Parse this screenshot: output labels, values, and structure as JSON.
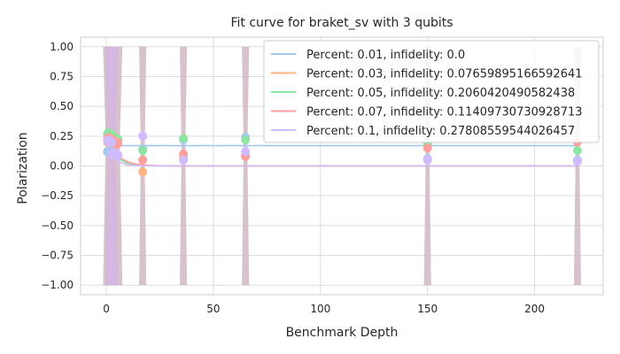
{
  "chart_data": {
    "type": "scatter",
    "title": "Fit curve for braket_sv with 3 qubits",
    "xlabel": "Benchmark Depth",
    "ylabel": "Polarization",
    "xlim": [
      -12,
      232
    ],
    "ylim": [
      -1.08,
      1.08
    ],
    "xticks": [
      0,
      50,
      100,
      150,
      200
    ],
    "yticks": [
      -1.0,
      -0.75,
      -0.5,
      -0.25,
      0.0,
      0.25,
      0.5,
      0.75,
      1.0
    ],
    "xtick_labels": [
      "0",
      "50",
      "100",
      "150",
      "200"
    ],
    "ytick_labels": [
      "−1.00",
      "−0.75",
      "−0.50",
      "−0.25",
      "0.00",
      "0.25",
      "0.50",
      "0.75",
      "1.00"
    ],
    "grid": true,
    "legend_position": "top-right",
    "depths": [
      1,
      2,
      3,
      5,
      17,
      36,
      65,
      150,
      220
    ],
    "series": [
      {
        "name": "Percent: 0.01, infidelity: 0.0",
        "color": "#a1c9f4",
        "values": [
          0.12,
          0.2,
          0.23,
          0.22,
          0.14,
          0.22,
          0.24,
          0.06,
          0.05
        ],
        "fit": {
          "a": 0.0,
          "b": 0.17,
          "decay": 0.0
        }
      },
      {
        "name": "Percent: 0.03, infidelity: 0.07659895166592641",
        "color": "#ffb482",
        "values": [
          0.2,
          0.22,
          0.24,
          0.21,
          -0.05,
          0.07,
          0.09,
          0.05,
          0.04
        ],
        "fit": {
          "a": 0.26,
          "b": 0.0,
          "decay": 0.2
        }
      },
      {
        "name": "Percent: 0.05, infidelity: 0.2060420490582438",
        "color": "#8de5a1",
        "values": [
          0.27,
          0.26,
          0.23,
          0.22,
          0.13,
          0.23,
          0.22,
          0.18,
          0.13
        ],
        "fit": {
          "a": 0.28,
          "b": 0.0,
          "decay": 0.25
        }
      },
      {
        "name": "Percent: 0.07, infidelity: 0.11409730730928713",
        "color": "#ff9f9b",
        "values": [
          0.23,
          0.22,
          0.21,
          0.19,
          0.05,
          0.1,
          0.08,
          0.15,
          0.2
        ],
        "fit": {
          "a": 0.25,
          "b": 0.0,
          "decay": 0.2
        }
      },
      {
        "name": "Percent: 0.1, infidelity: 0.27808559544026457",
        "color": "#d0bbff",
        "values": [
          0.21,
          0.2,
          0.1,
          0.09,
          0.25,
          0.05,
          0.12,
          0.05,
          0.04
        ],
        "fit": {
          "a": 0.22,
          "b": 0.0,
          "decay": 0.3
        }
      }
    ]
  }
}
